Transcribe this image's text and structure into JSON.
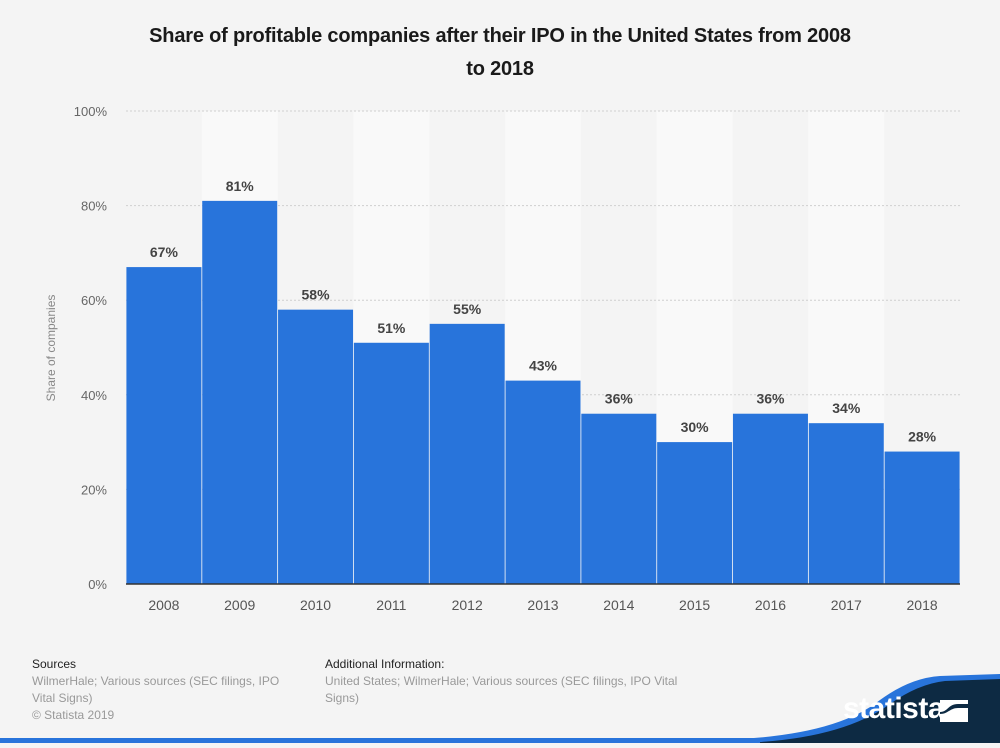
{
  "chart_data": {
    "type": "bar",
    "title": "Share of profitable companies after their IPO in the United States from 2008 to 2018",
    "xlabel": "",
    "ylabel": "Share of companies",
    "categories": [
      "2008",
      "2009",
      "2010",
      "2011",
      "2012",
      "2013",
      "2014",
      "2015",
      "2016",
      "2017",
      "2018"
    ],
    "values": [
      67,
      81,
      58,
      51,
      55,
      43,
      36,
      30,
      36,
      34,
      28
    ],
    "value_labels": [
      "67%",
      "81%",
      "58%",
      "51%",
      "55%",
      "43%",
      "36%",
      "30%",
      "36%",
      "34%",
      "28%"
    ],
    "ylim": [
      0,
      100
    ],
    "yticks": [
      0,
      20,
      40,
      60,
      80,
      100
    ],
    "ytick_labels": [
      "0%",
      "20%",
      "40%",
      "60%",
      "80%",
      "100%"
    ],
    "grid": true,
    "legend": "none",
    "bar_color": "#2874db"
  },
  "title_lines": [
    "Share of profitable companies after their IPO in the United States from 2008",
    "to 2018"
  ],
  "footer": {
    "sources_heading": "Sources",
    "sources_lines": [
      "WilmerHale; Various sources (SEC filings, IPO",
      "Vital Signs)"
    ],
    "copyright": "© Statista 2019",
    "additional_heading": "Additional Information:",
    "additional_lines": [
      "United States; WilmerHale; Various sources (SEC filings, IPO Vital",
      "Signs)"
    ]
  },
  "brand": {
    "name": "statista",
    "dark_color": "#0d2a43",
    "accent_color": "#2874db"
  }
}
